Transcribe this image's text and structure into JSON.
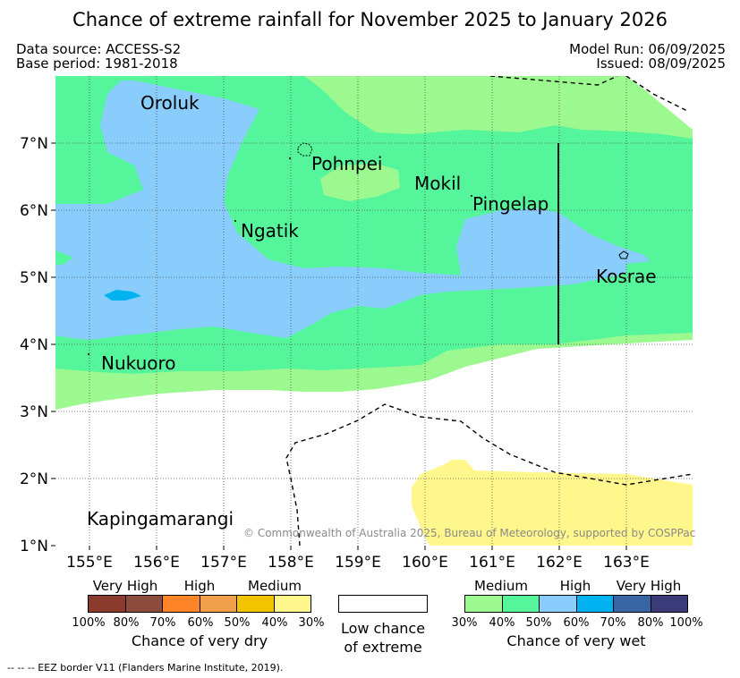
{
  "title": "Chance of extreme rainfall for November 2025 to January 2026",
  "data_source": "Data source: ACCESS-S2",
  "base_period": "Base period: 1981-2018",
  "model_run": "Model Run: 06/09/2025",
  "issued": "Issued: 08/09/2025",
  "copyright": "© Commonwealth of Australia 2025, Bureau of Meteorology, supported by COSPPac",
  "map": {
    "lon_range": [
      154.5,
      164
    ],
    "lat_range": [
      1,
      8
    ],
    "lon_ticks": [
      "155°E",
      "156°E",
      "157°E",
      "158°E",
      "159°E",
      "160°E",
      "161°E",
      "162°E",
      "163°E"
    ],
    "lat_ticks": [
      "1°N",
      "2°N",
      "3°N",
      "4°N",
      "5°N",
      "6°N",
      "7°N"
    ],
    "places": [
      {
        "name": "Oroluk",
        "lon": 155.8,
        "lat": 7.6
      },
      {
        "name": "Pohnpei",
        "lon": 158.3,
        "lat": 6.9
      },
      {
        "name": "Mokil",
        "lon": 160.0,
        "lat": 6.4
      },
      {
        "name": "Pingelap",
        "lon": 160.7,
        "lat": 6.1
      },
      {
        "name": "Ngatik",
        "lon": 156.9,
        "lat": 5.7
      },
      {
        "name": "Kosrae",
        "lon": 162.5,
        "lat": 5.0
      },
      {
        "name": "Nukuoro",
        "lon": 155.2,
        "lat": 3.7
      },
      {
        "name": "Kapingamarangi",
        "lon": 155.0,
        "lat": 1.3
      }
    ],
    "colors": {
      "wet_medium": "#9cf98f",
      "wet_40": "#54f59b",
      "wet_high": "#88cdfb",
      "wet_70": "#00b3f0",
      "dry_medium": "#fff68c",
      "land_outline": "#000000",
      "grid": "#555555"
    }
  },
  "legend_dry": {
    "headers": [
      "Very High",
      "High",
      "Medium"
    ],
    "colors": [
      "#8b3a2e",
      "#8b4c3d",
      "#ff8327",
      "#f0a04b",
      "#f2c400",
      "#fff68c"
    ],
    "labels": [
      "100%",
      "80%",
      "70%",
      "60%",
      "50%",
      "40%",
      "30%"
    ],
    "caption": "Chance of very dry"
  },
  "legend_low": {
    "line1": "Low chance",
    "line2": "of extreme"
  },
  "legend_wet": {
    "headers": [
      "Medium",
      "High",
      "Very High"
    ],
    "colors": [
      "#9cf98f",
      "#54f59b",
      "#88cdfb",
      "#00b3f0",
      "#3866a5",
      "#3a3b78"
    ],
    "labels": [
      "30%",
      "40%",
      "50%",
      "60%",
      "70%",
      "80%",
      "100%"
    ],
    "caption": "Chance of very wet"
  },
  "footnote": "--  --  -- EEZ border V11 (Flanders Marine Institute, 2019)."
}
